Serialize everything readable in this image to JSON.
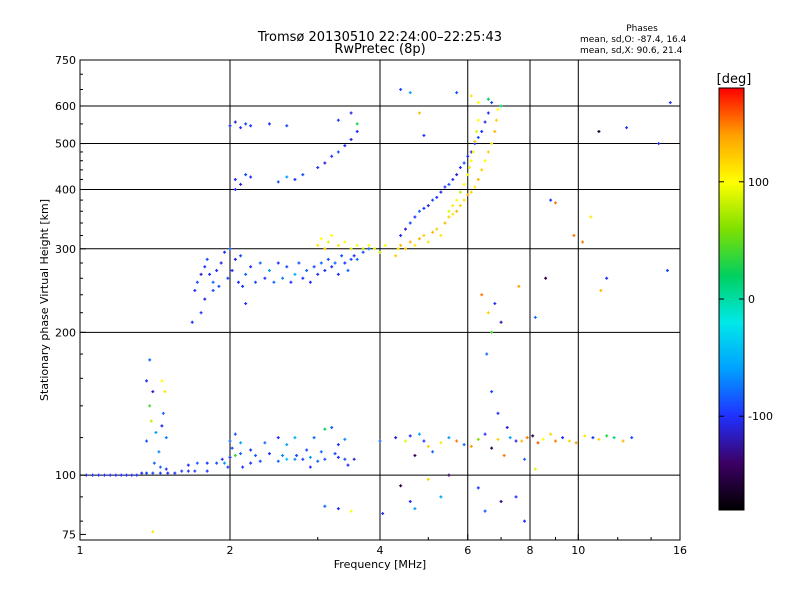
{
  "chart_data": {
    "type": "scatter",
    "title": "Tromsø 20130510 22:24:00–22:25:43",
    "subtitle": "RwPretec (8p)",
    "xlabel": "Frequency [MHz]",
    "ylabel": "Stationary phase Virtual Height [km]",
    "x_scale": "log",
    "y_scale": "log",
    "xlim": [
      1,
      16
    ],
    "ylim": [
      73,
      750
    ],
    "x_ticks": [
      1,
      2,
      4,
      6,
      8,
      10,
      16
    ],
    "y_ticks": [
      75,
      100,
      200,
      300,
      400,
      500,
      600,
      750
    ],
    "x_gridlines": [
      2,
      4,
      6,
      8,
      10
    ],
    "y_gridlines": [
      100,
      200,
      300,
      400,
      500,
      600
    ],
    "grid": true,
    "stats": {
      "heading": "Phases",
      "line_o": "mean, sd,O: -87.4, 16.4",
      "line_x": "mean, sd,X:  90.6, 21.4"
    },
    "colorbar": {
      "label": "[deg]",
      "range": [
        -180,
        180
      ],
      "ticks": [
        100,
        0,
        -100
      ],
      "colormap": [
        "#000000",
        "#3c0064",
        "#2030ff",
        "#00a0ff",
        "#00e8e8",
        "#00d060",
        "#80e000",
        "#ffff00",
        "#ffa000",
        "#ff0000"
      ]
    },
    "points": [
      [
        1.03,
        100,
        -100
      ],
      [
        1.06,
        100,
        -100
      ],
      [
        1.09,
        100,
        -100
      ],
      [
        1.12,
        100,
        -100
      ],
      [
        1.15,
        100,
        -100
      ],
      [
        1.18,
        100,
        -100
      ],
      [
        1.21,
        100,
        -100
      ],
      [
        1.24,
        100,
        -100
      ],
      [
        1.27,
        100,
        -100
      ],
      [
        1.3,
        100,
        -100
      ],
      [
        1.33,
        101,
        -100
      ],
      [
        1.36,
        101,
        -95
      ],
      [
        1.4,
        101,
        -90
      ],
      [
        1.45,
        101,
        -90
      ],
      [
        1.5,
        101,
        -100
      ],
      [
        1.55,
        101,
        -100
      ],
      [
        1.6,
        102,
        -95
      ],
      [
        1.65,
        102,
        -100
      ],
      [
        1.7,
        102,
        -95
      ],
      [
        1.8,
        102,
        -100
      ],
      [
        1.38,
        175,
        -80
      ],
      [
        1.36,
        158,
        -100
      ],
      [
        1.4,
        150,
        -110
      ],
      [
        1.38,
        140,
        40
      ],
      [
        1.39,
        130,
        80
      ],
      [
        1.42,
        123,
        -60
      ],
      [
        1.36,
        118,
        -90
      ],
      [
        1.44,
        112,
        -70
      ],
      [
        1.41,
        106,
        -80
      ],
      [
        1.46,
        158,
        100
      ],
      [
        1.48,
        150,
        110
      ],
      [
        1.47,
        135,
        -80
      ],
      [
        1.46,
        127,
        -110
      ],
      [
        1.49,
        120,
        -70
      ],
      [
        1.45,
        104,
        -80
      ],
      [
        1.49,
        103,
        -100
      ],
      [
        1.65,
        105,
        -100
      ],
      [
        1.72,
        106,
        -80
      ],
      [
        1.8,
        106,
        -100
      ],
      [
        1.88,
        106,
        -90
      ],
      [
        1.95,
        106,
        -60
      ],
      [
        2.0,
        109,
        -100
      ],
      [
        2.05,
        110,
        40
      ],
      [
        2.1,
        111,
        -80
      ],
      [
        2.2,
        106,
        -100
      ],
      [
        2.3,
        107,
        -90
      ],
      [
        2.5,
        107,
        -80
      ],
      [
        2.6,
        108,
        -40
      ],
      [
        2.7,
        108,
        -70
      ],
      [
        2.8,
        108,
        -100
      ],
      [
        2.9,
        109,
        -60
      ],
      [
        3.0,
        107,
        -80
      ],
      [
        3.1,
        108,
        -90
      ],
      [
        3.3,
        109,
        -100
      ],
      [
        3.4,
        108,
        -90
      ],
      [
        3.55,
        108,
        -110
      ],
      [
        2.0,
        118,
        -80
      ],
      [
        2.05,
        122,
        -90
      ],
      [
        2.1,
        117,
        -60
      ],
      [
        2.2,
        113,
        -100
      ],
      [
        2.35,
        117,
        -80
      ],
      [
        2.5,
        120,
        -100
      ],
      [
        2.6,
        116,
        -60
      ],
      [
        2.7,
        120,
        -50
      ],
      [
        2.85,
        113,
        -90
      ],
      [
        2.95,
        120,
        -80
      ],
      [
        3.1,
        125,
        20
      ],
      [
        3.2,
        126,
        -80
      ],
      [
        3.3,
        116,
        -100
      ],
      [
        3.4,
        119,
        -70
      ],
      [
        1.93,
        108,
        -100
      ],
      [
        1.98,
        104,
        -90
      ],
      [
        2.02,
        114,
        -90
      ],
      [
        2.12,
        104,
        -100
      ],
      [
        2.25,
        110,
        -80
      ],
      [
        2.4,
        111,
        -100
      ],
      [
        2.55,
        110,
        -70
      ],
      [
        2.72,
        110,
        -90
      ],
      [
        2.9,
        104,
        -100
      ],
      [
        3.05,
        112,
        -80
      ],
      [
        3.25,
        111,
        -90
      ],
      [
        3.45,
        105,
        -100
      ],
      [
        1.7,
        245,
        -100
      ],
      [
        1.72,
        255,
        -90
      ],
      [
        1.75,
        265,
        -110
      ],
      [
        1.78,
        275,
        -100
      ],
      [
        1.8,
        285,
        -90
      ],
      [
        1.82,
        265,
        -100
      ],
      [
        1.85,
        255,
        -80
      ],
      [
        1.88,
        270,
        -100
      ],
      [
        1.9,
        250,
        -90
      ],
      [
        1.92,
        280,
        -110
      ],
      [
        1.95,
        295,
        -100
      ],
      [
        1.98,
        260,
        -90
      ],
      [
        2.0,
        300,
        -80
      ],
      [
        2.02,
        270,
        -100
      ],
      [
        2.05,
        285,
        -110
      ],
      [
        2.08,
        255,
        -100
      ],
      [
        2.1,
        290,
        -90
      ],
      [
        2.12,
        250,
        -100
      ],
      [
        2.15,
        265,
        -80
      ],
      [
        2.2,
        275,
        -100
      ],
      [
        2.25,
        255,
        -90
      ],
      [
        2.3,
        280,
        -80
      ],
      [
        2.35,
        260,
        -100
      ],
      [
        2.4,
        270,
        -60
      ],
      [
        2.45,
        255,
        -80
      ],
      [
        2.5,
        280,
        -100
      ],
      [
        2.55,
        260,
        -70
      ],
      [
        2.6,
        275,
        -90
      ],
      [
        2.65,
        255,
        -100
      ],
      [
        2.7,
        265,
        -50
      ],
      [
        2.75,
        280,
        -90
      ],
      [
        2.8,
        260,
        -100
      ],
      [
        2.85,
        270,
        -80
      ],
      [
        2.9,
        255,
        -100
      ],
      [
        2.95,
        275,
        -90
      ],
      [
        3.0,
        265,
        -100
      ],
      [
        3.05,
        280,
        -80
      ],
      [
        3.1,
        270,
        -100
      ],
      [
        3.15,
        285,
        -90
      ],
      [
        3.2,
        275,
        -100
      ],
      [
        3.25,
        280,
        -80
      ],
      [
        3.3,
        265,
        -100
      ],
      [
        3.35,
        290,
        -90
      ],
      [
        3.4,
        280,
        -100
      ],
      [
        3.45,
        270,
        -80
      ],
      [
        3.5,
        285,
        -90
      ],
      [
        3.55,
        290,
        -100
      ],
      [
        3.6,
        285,
        -80
      ],
      [
        3.7,
        295,
        -90
      ],
      [
        3.8,
        300,
        -80
      ],
      [
        1.75,
        220,
        -100
      ],
      [
        1.78,
        235,
        -110
      ],
      [
        1.68,
        210,
        -100
      ],
      [
        1.85,
        245,
        -90
      ],
      [
        2.15,
        230,
        -100
      ],
      [
        3.0,
        305,
        110
      ],
      [
        3.05,
        315,
        100
      ],
      [
        3.1,
        300,
        120
      ],
      [
        3.15,
        310,
        90
      ],
      [
        3.2,
        320,
        100
      ],
      [
        3.3,
        305,
        110
      ],
      [
        3.4,
        310,
        100
      ],
      [
        3.5,
        300,
        90
      ],
      [
        3.6,
        305,
        100
      ],
      [
        3.7,
        300,
        80
      ],
      [
        3.8,
        305,
        100
      ],
      [
        3.9,
        300,
        90
      ],
      [
        4.0,
        295,
        80
      ],
      [
        4.1,
        305,
        100
      ],
      [
        4.3,
        290,
        120
      ],
      [
        4.35,
        300,
        110
      ],
      [
        4.4,
        305,
        130
      ],
      [
        4.5,
        300,
        120
      ],
      [
        4.6,
        310,
        130
      ],
      [
        4.7,
        305,
        110
      ],
      [
        4.8,
        315,
        130
      ],
      [
        4.9,
        320,
        120
      ],
      [
        5.0,
        310,
        110
      ],
      [
        5.1,
        325,
        130
      ],
      [
        5.2,
        330,
        120
      ],
      [
        5.3,
        320,
        110
      ],
      [
        5.4,
        340,
        130
      ],
      [
        5.5,
        350,
        120
      ],
      [
        5.6,
        355,
        110
      ],
      [
        5.7,
        360,
        130
      ],
      [
        5.8,
        370,
        120
      ],
      [
        5.9,
        380,
        110
      ],
      [
        6.0,
        390,
        130
      ],
      [
        6.1,
        395,
        120
      ],
      [
        6.2,
        405,
        110
      ],
      [
        6.3,
        420,
        130
      ],
      [
        6.4,
        440,
        120
      ],
      [
        6.5,
        460,
        100
      ],
      [
        6.6,
        480,
        120
      ],
      [
        6.7,
        500,
        110
      ],
      [
        6.8,
        530,
        130
      ],
      [
        6.85,
        560,
        120
      ],
      [
        6.9,
        590,
        100
      ],
      [
        4.4,
        320,
        -100
      ],
      [
        4.5,
        330,
        -110
      ],
      [
        4.6,
        340,
        -90
      ],
      [
        4.7,
        350,
        -100
      ],
      [
        4.8,
        360,
        -80
      ],
      [
        4.9,
        365,
        -100
      ],
      [
        5.0,
        370,
        -110
      ],
      [
        5.1,
        380,
        -90
      ],
      [
        5.2,
        385,
        -100
      ],
      [
        5.3,
        395,
        -110
      ],
      [
        5.4,
        405,
        -100
      ],
      [
        5.5,
        410,
        -90
      ],
      [
        5.6,
        420,
        -100
      ],
      [
        5.7,
        430,
        -110
      ],
      [
        5.8,
        445,
        -100
      ],
      [
        5.9,
        455,
        -90
      ],
      [
        6.0,
        470,
        -100
      ],
      [
        6.1,
        480,
        -110
      ],
      [
        6.2,
        500,
        -100
      ],
      [
        6.3,
        515,
        -90
      ],
      [
        6.4,
        530,
        -100
      ],
      [
        6.5,
        555,
        -110
      ],
      [
        6.6,
        580,
        -100
      ],
      [
        6.7,
        610,
        -90
      ],
      [
        5.5,
        360,
        90
      ],
      [
        5.6,
        370,
        110
      ],
      [
        5.7,
        380,
        100
      ],
      [
        5.8,
        395,
        80
      ],
      [
        5.9,
        410,
        100
      ],
      [
        6.0,
        430,
        110
      ],
      [
        6.05,
        445,
        90
      ],
      [
        6.1,
        460,
        100
      ],
      [
        6.15,
        480,
        110
      ],
      [
        6.2,
        505,
        120
      ],
      [
        6.25,
        530,
        90
      ],
      [
        6.3,
        560,
        100
      ],
      [
        2.0,
        545,
        -100
      ],
      [
        2.05,
        555,
        -110
      ],
      [
        2.1,
        540,
        -100
      ],
      [
        2.15,
        550,
        -90
      ],
      [
        2.2,
        545,
        -100
      ],
      [
        2.4,
        550,
        -100
      ],
      [
        2.6,
        545,
        -90
      ],
      [
        3.3,
        560,
        -100
      ],
      [
        3.5,
        580,
        -110
      ],
      [
        3.6,
        550,
        30
      ],
      [
        2.05,
        420,
        -100
      ],
      [
        2.1,
        410,
        -110
      ],
      [
        2.15,
        430,
        -90
      ],
      [
        2.05,
        400,
        -100
      ],
      [
        2.2,
        425,
        -100
      ],
      [
        2.5,
        415,
        -90
      ],
      [
        2.6,
        425,
        -60
      ],
      [
        2.7,
        420,
        -100
      ],
      [
        2.8,
        430,
        -90
      ],
      [
        3.0,
        445,
        -100
      ],
      [
        3.1,
        455,
        -110
      ],
      [
        3.2,
        470,
        -100
      ],
      [
        3.3,
        480,
        -90
      ],
      [
        3.4,
        495,
        -100
      ],
      [
        3.5,
        510,
        -110
      ],
      [
        3.6,
        530,
        -100
      ],
      [
        4.4,
        650,
        -90
      ],
      [
        4.6,
        640,
        -60
      ],
      [
        4.8,
        580,
        130
      ],
      [
        4.9,
        520,
        -100
      ],
      [
        5.7,
        640,
        -90
      ],
      [
        6.1,
        630,
        110
      ],
      [
        6.3,
        610,
        100
      ],
      [
        6.6,
        620,
        20
      ],
      [
        7.0,
        600,
        10
      ],
      [
        11.0,
        530,
        -160
      ],
      [
        12.5,
        540,
        -100
      ],
      [
        14.5,
        500,
        -100
      ],
      [
        15.3,
        610,
        -100
      ],
      [
        4.0,
        118,
        -80
      ],
      [
        4.05,
        83,
        -100
      ],
      [
        4.3,
        120,
        -110
      ],
      [
        4.5,
        118,
        90
      ],
      [
        4.6,
        121,
        -100
      ],
      [
        4.7,
        110,
        -140
      ],
      [
        4.8,
        122,
        -60
      ],
      [
        4.9,
        118,
        -100
      ],
      [
        5.0,
        115,
        120
      ],
      [
        5.1,
        112,
        -80
      ],
      [
        5.3,
        117,
        110
      ],
      [
        5.5,
        120,
        -60
      ],
      [
        5.7,
        118,
        150
      ],
      [
        5.9,
        116,
        -80
      ],
      [
        6.1,
        115,
        140
      ],
      [
        6.3,
        119,
        60
      ],
      [
        6.5,
        122,
        -100
      ],
      [
        6.7,
        114,
        -150
      ],
      [
        6.9,
        119,
        120
      ],
      [
        7.1,
        110,
        150
      ],
      [
        7.3,
        120,
        -60
      ],
      [
        7.5,
        118,
        -110
      ],
      [
        7.7,
        118,
        130
      ],
      [
        7.9,
        120,
        150
      ],
      [
        8.1,
        121,
        -150
      ],
      [
        8.3,
        117,
        160
      ],
      [
        8.5,
        119,
        100
      ],
      [
        8.8,
        122,
        120
      ],
      [
        9.0,
        118,
        150
      ],
      [
        9.3,
        120,
        -100
      ],
      [
        9.6,
        118,
        120
      ],
      [
        9.9,
        117,
        140
      ],
      [
        10.3,
        121,
        110
      ],
      [
        10.7,
        120,
        -100
      ],
      [
        11.0,
        119,
        120
      ],
      [
        11.4,
        121,
        30
      ],
      [
        11.8,
        120,
        10
      ],
      [
        12.3,
        118,
        130
      ],
      [
        12.8,
        120,
        -90
      ],
      [
        4.4,
        95,
        -150
      ],
      [
        4.6,
        88,
        -100
      ],
      [
        5.0,
        98,
        120
      ],
      [
        5.3,
        90,
        -60
      ],
      [
        5.5,
        100,
        -140
      ],
      [
        6.3,
        94,
        -100
      ],
      [
        6.5,
        84,
        -90
      ],
      [
        7.0,
        88,
        -130
      ],
      [
        7.5,
        90,
        -100
      ],
      [
        7.8,
        108,
        -80
      ],
      [
        8.2,
        103,
        90
      ],
      [
        6.4,
        240,
        150
      ],
      [
        6.6,
        220,
        120
      ],
      [
        6.7,
        200,
        40
      ],
      [
        6.8,
        230,
        -100
      ],
      [
        7.0,
        210,
        -120
      ],
      [
        7.6,
        250,
        140
      ],
      [
        8.2,
        215,
        -80
      ],
      [
        8.6,
        260,
        -150
      ],
      [
        8.8,
        380,
        -100
      ],
      [
        9.0,
        375,
        150
      ],
      [
        9.8,
        320,
        150
      ],
      [
        10.2,
        310,
        150
      ],
      [
        10.6,
        350,
        110
      ],
      [
        11.1,
        245,
        130
      ],
      [
        11.4,
        260,
        -100
      ],
      [
        15.1,
        270,
        -90
      ],
      [
        6.55,
        180,
        -80
      ],
      [
        6.7,
        150,
        -90
      ],
      [
        6.9,
        135,
        -100
      ],
      [
        7.2,
        126,
        -110
      ],
      [
        3.1,
        86,
        -80
      ],
      [
        3.3,
        85,
        -100
      ],
      [
        3.5,
        84,
        100
      ],
      [
        1.4,
        76,
        110
      ],
      [
        4.7,
        85,
        -60
      ],
      [
        7.8,
        80,
        -100
      ]
    ]
  }
}
